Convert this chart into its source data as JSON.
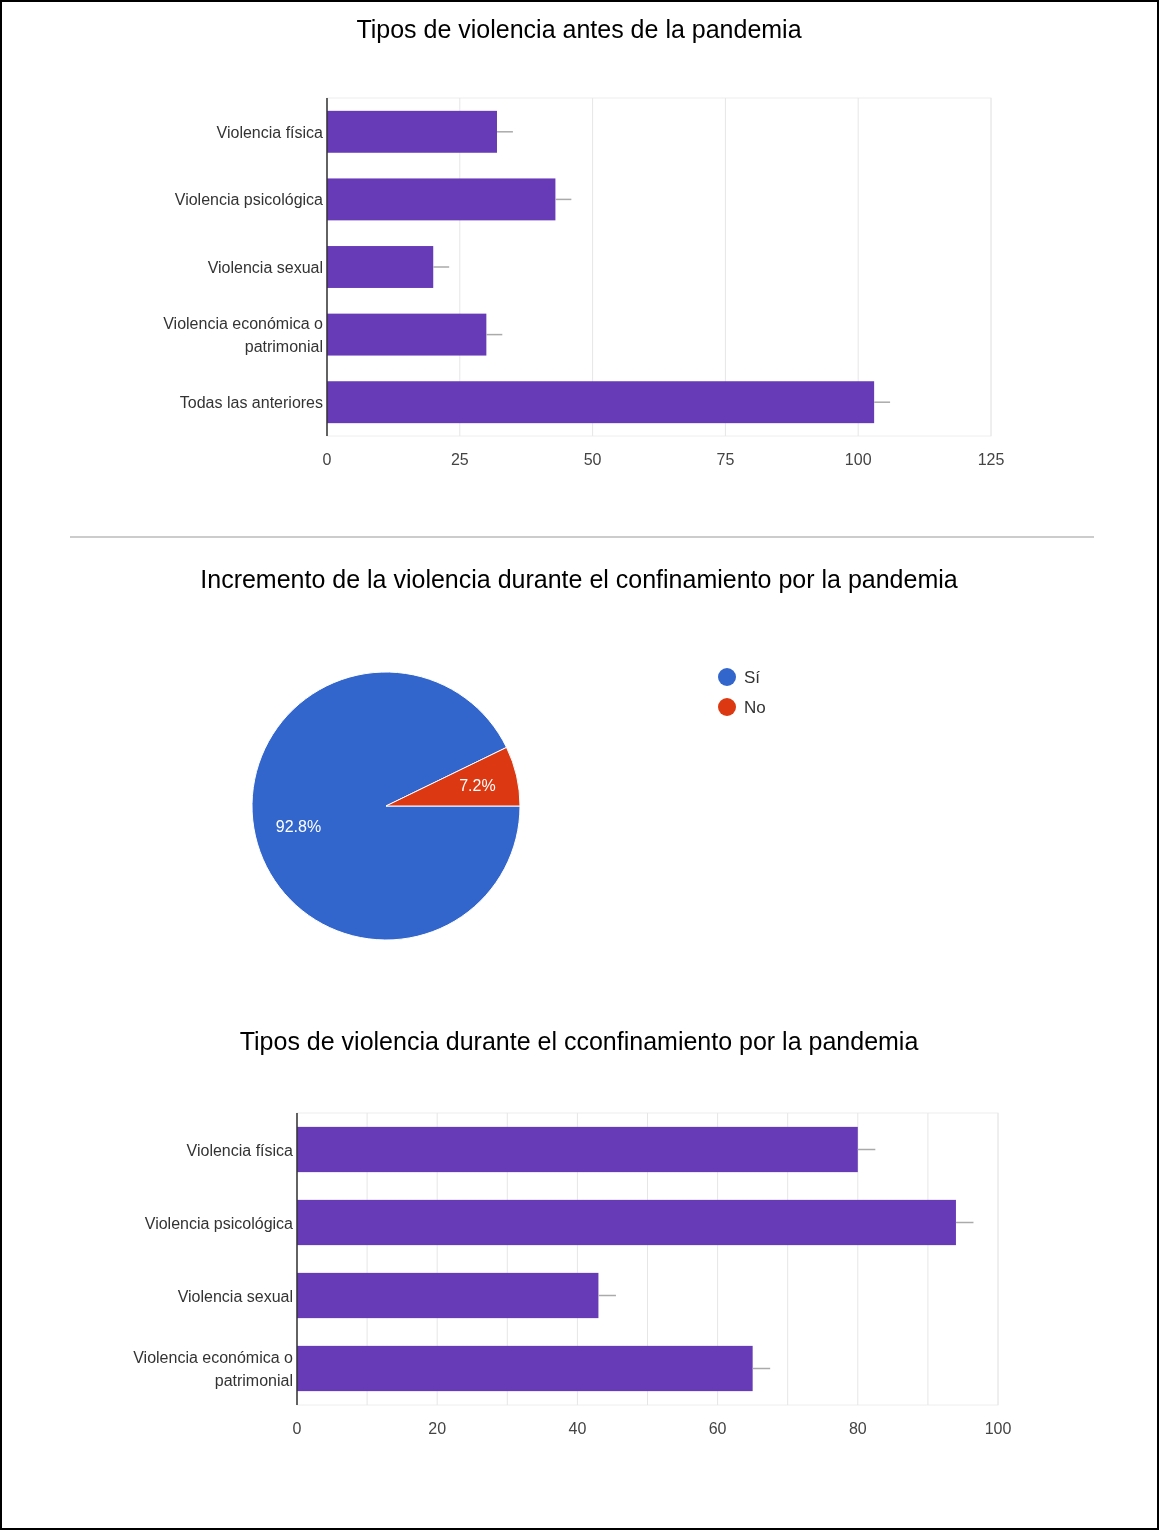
{
  "chart_data": [
    {
      "type": "bar",
      "orientation": "horizontal",
      "title": "Tipos de violencia antes de la pandemia",
      "categories": [
        "Violencia física",
        "Violencia psicológica",
        "Violencia sexual",
        "Violencia económica o patrimonial",
        "Todas las anteriores"
      ],
      "values": [
        32,
        43,
        20,
        30,
        103
      ],
      "color": "#673ab7",
      "errors": [
        [
          32,
          35
        ],
        [
          43,
          46
        ],
        [
          20,
          23
        ],
        [
          30,
          33
        ],
        [
          103,
          106
        ]
      ],
      "xlim": [
        0,
        125
      ],
      "xticks": [
        0,
        25,
        50,
        75,
        100,
        125
      ],
      "grid": "x"
    },
    {
      "type": "pie",
      "title": "Incremento de la violencia durante el confinamiento por la pandemia",
      "categories": [
        "Sí",
        "No"
      ],
      "values": [
        92.8,
        7.2
      ],
      "colors": [
        "#3366cc",
        "#dc3912"
      ],
      "value_labels": [
        "92.8%",
        "7.2%"
      ],
      "legend": "right"
    },
    {
      "type": "bar",
      "orientation": "horizontal",
      "title": "Tipos de violencia durante el cconfinamiento por la pandemia",
      "categories": [
        "Violencia física",
        "Violencia psicológica",
        "Violencia sexual",
        "Violencia económica o patrimonial"
      ],
      "values": [
        80,
        94,
        43,
        65
      ],
      "color": "#673ab7",
      "errors": [
        [
          80,
          82.5
        ],
        [
          94,
          96.5
        ],
        [
          43,
          45.5
        ],
        [
          65,
          67.5
        ]
      ],
      "xlim": [
        0,
        100
      ],
      "xticks": [
        0,
        {
          "value": 10,
          "label": null
        },
        20,
        {
          "value": 30,
          "label": null
        },
        40,
        {
          "value": 50,
          "label": null
        },
        60,
        {
          "value": 70,
          "label": null
        },
        80,
        {
          "value": 90,
          "label": null
        },
        100
      ],
      "grid": "x"
    }
  ]
}
